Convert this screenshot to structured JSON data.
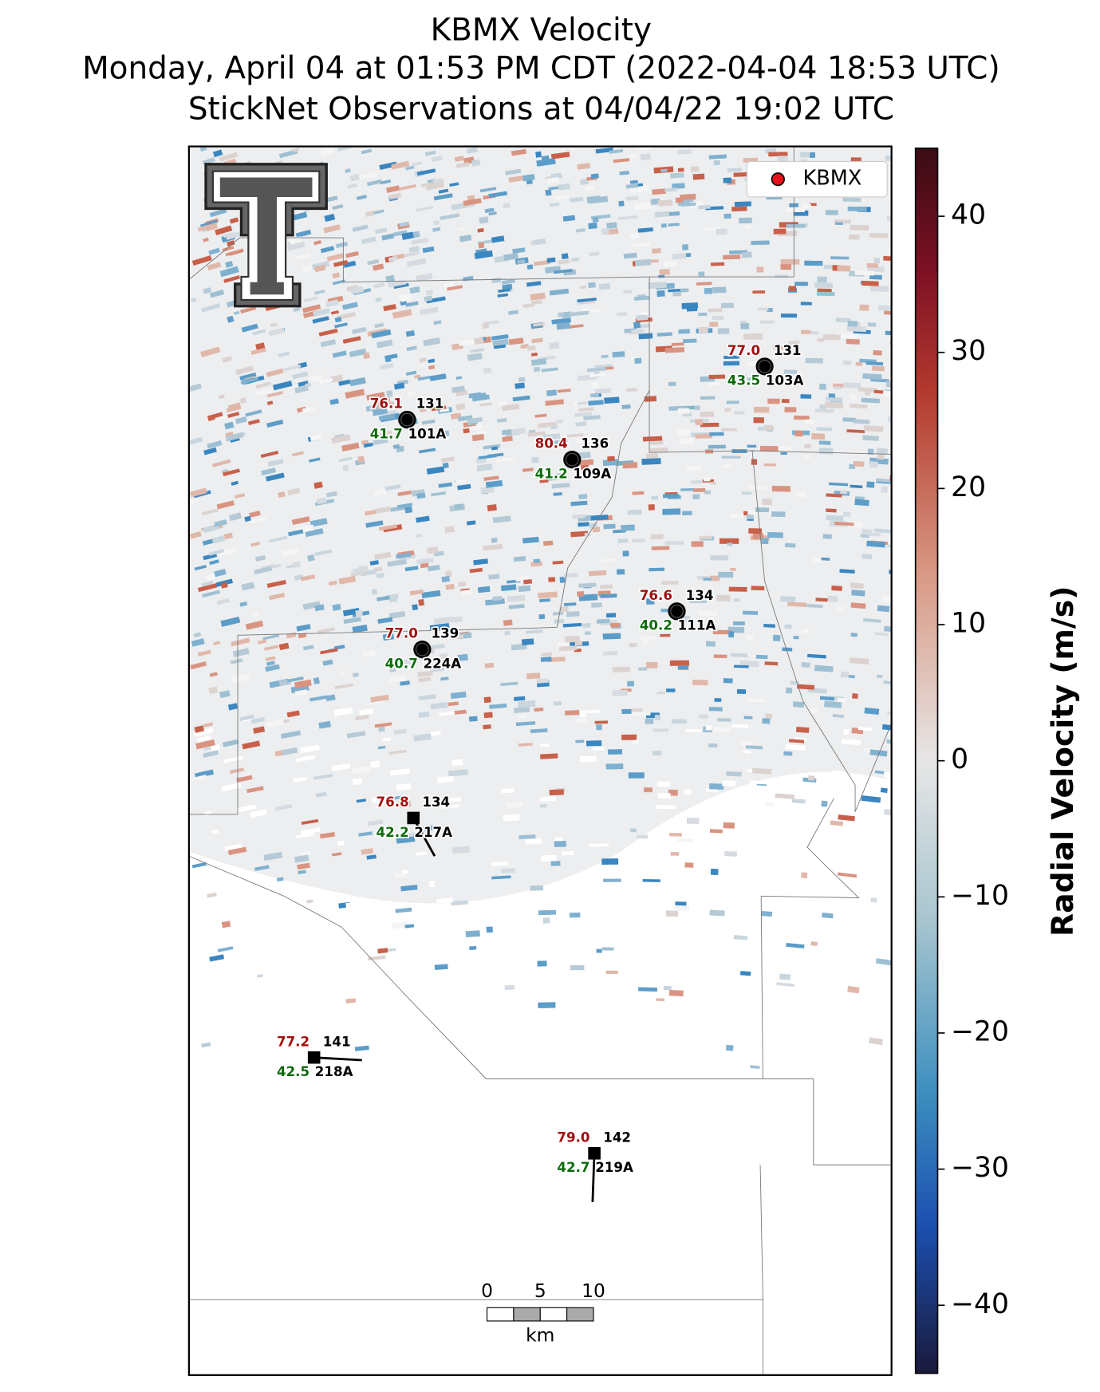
{
  "title_lines": [
    "KBMX Velocity",
    "Monday, April 04 at 01:53 PM CDT (2022-04-04 18:53 UTC)",
    "StickNet Observations at 04/04/22 19:02 UTC"
  ],
  "legend": {
    "label": "KBMX",
    "color": "#e8101a"
  },
  "colorbar": {
    "label": "Radial Velocity (m/s)",
    "clim": [
      -45,
      45
    ],
    "ticks": [
      {
        "value": -40,
        "label": "−40"
      },
      {
        "value": -30,
        "label": "−30"
      },
      {
        "value": -20,
        "label": "−20"
      },
      {
        "value": -10,
        "label": "−10"
      },
      0,
      10,
      20,
      30,
      40
    ]
  },
  "stations": [
    {
      "id": "101A",
      "temperature": "76.1",
      "dewpoint": "41.7",
      "value": "131",
      "marker": "circle"
    },
    {
      "id": "109A",
      "temperature": "80.4",
      "dewpoint": "41.2",
      "value": "136",
      "marker": "circle"
    },
    {
      "id": "103A",
      "temperature": "77.0",
      "dewpoint": "43.5",
      "value": "131",
      "marker": "circle"
    },
    {
      "id": "111A",
      "temperature": "76.6",
      "dewpoint": "40.2",
      "value": "134",
      "marker": "circle"
    },
    {
      "id": "224A",
      "temperature": "77.0",
      "dewpoint": "40.7",
      "value": "139",
      "marker": "circle"
    },
    {
      "id": "217A",
      "temperature": "76.8",
      "dewpoint": "42.2",
      "value": "134",
      "marker": "square"
    },
    {
      "id": "218A",
      "temperature": "77.2",
      "dewpoint": "42.5",
      "value": "141",
      "marker": "square"
    },
    {
      "id": "219A",
      "temperature": "79.0",
      "dewpoint": "42.7",
      "value": "142",
      "marker": "square"
    }
  ],
  "scale_bar": {
    "labels": [
      "0",
      "5",
      "10"
    ],
    "unit": "km"
  }
}
